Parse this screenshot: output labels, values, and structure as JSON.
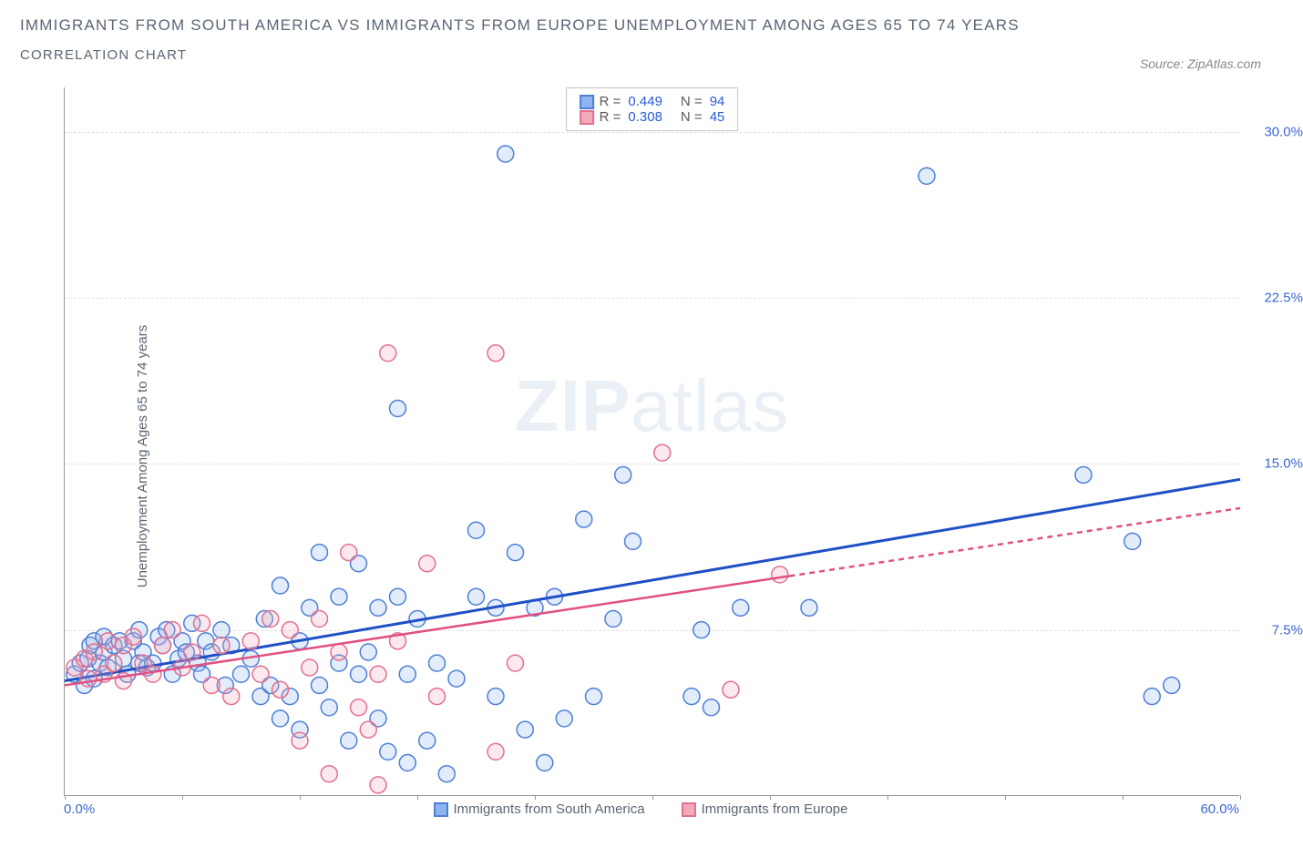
{
  "title_line1": "IMMIGRANTS FROM SOUTH AMERICA VS IMMIGRANTS FROM EUROPE UNEMPLOYMENT AMONG AGES 65 TO 74 YEARS",
  "title_line2": "CORRELATION CHART",
  "source_text": "Source: ZipAtlas.com",
  "y_axis_label": "Unemployment Among Ages 65 to 74 years",
  "watermark_bold": "ZIP",
  "watermark_rest": "atlas",
  "chart": {
    "type": "scatter",
    "background_color": "#ffffff",
    "grid_color": "#e0e0e0",
    "axis_color": "#999999",
    "text_color": "#5a6675",
    "tick_label_color": "#3a66d6",
    "marker_radius": 9,
    "marker_stroke_width": 1.5,
    "marker_fill_opacity": 0.25,
    "xlim": [
      0,
      60
    ],
    "ylim": [
      0,
      32
    ],
    "x_ticks": [
      0,
      6,
      12,
      18,
      24,
      30,
      36,
      42,
      48,
      54,
      60
    ],
    "x_tick_labels": {
      "0": "0.0%",
      "60": "60.0%"
    },
    "y_gridlines": [
      7.5,
      15.0,
      22.5,
      30.0
    ],
    "y_tick_labels": {
      "7.5": "7.5%",
      "15.0": "15.0%",
      "22.5": "22.5%",
      "30.0": "30.0%"
    }
  },
  "series": [
    {
      "id": "south_america",
      "label": "Immigrants from South America",
      "fill": "#8fb3ef",
      "stroke": "#4d7fd6",
      "trend_color": "#1e50c6",
      "trend_width": 3,
      "trend_dashed_tail": false,
      "R": "0.449",
      "N": "94",
      "trend": {
        "x1": 0,
        "y1": 5.2,
        "x2": 60,
        "y2": 14.3
      },
      "points": [
        [
          0.5,
          5.5
        ],
        [
          0.8,
          6.0
        ],
        [
          1.0,
          5.0
        ],
        [
          1.2,
          6.2
        ],
        [
          1.3,
          6.8
        ],
        [
          1.5,
          5.3
        ],
        [
          1.5,
          7.0
        ],
        [
          1.8,
          6.0
        ],
        [
          2.0,
          6.5
        ],
        [
          2.0,
          7.2
        ],
        [
          2.2,
          5.8
        ],
        [
          2.5,
          6.8
        ],
        [
          2.8,
          7.0
        ],
        [
          3.0,
          6.2
        ],
        [
          3.2,
          5.5
        ],
        [
          3.5,
          7.0
        ],
        [
          3.8,
          6.0
        ],
        [
          3.8,
          7.5
        ],
        [
          4.0,
          6.5
        ],
        [
          4.2,
          5.8
        ],
        [
          4.5,
          6.0
        ],
        [
          4.8,
          7.2
        ],
        [
          5.0,
          6.8
        ],
        [
          5.2,
          7.5
        ],
        [
          5.5,
          5.5
        ],
        [
          5.8,
          6.2
        ],
        [
          6.0,
          7.0
        ],
        [
          6.2,
          6.5
        ],
        [
          6.5,
          7.8
        ],
        [
          6.8,
          6.0
        ],
        [
          7.0,
          5.5
        ],
        [
          7.2,
          7.0
        ],
        [
          7.5,
          6.5
        ],
        [
          8.0,
          7.5
        ],
        [
          8.2,
          5.0
        ],
        [
          8.5,
          6.8
        ],
        [
          9.0,
          5.5
        ],
        [
          9.5,
          6.2
        ],
        [
          10.0,
          4.5
        ],
        [
          10.2,
          8.0
        ],
        [
          10.5,
          5.0
        ],
        [
          11.0,
          3.5
        ],
        [
          11.0,
          9.5
        ],
        [
          11.5,
          4.5
        ],
        [
          12.0,
          7.0
        ],
        [
          12.0,
          3.0
        ],
        [
          12.5,
          8.5
        ],
        [
          13.0,
          5.0
        ],
        [
          13.0,
          11.0
        ],
        [
          13.5,
          4.0
        ],
        [
          14.0,
          6.0
        ],
        [
          14.0,
          9.0
        ],
        [
          14.5,
          2.5
        ],
        [
          15.0,
          10.5
        ],
        [
          15.0,
          5.5
        ],
        [
          15.5,
          6.5
        ],
        [
          16.0,
          8.5
        ],
        [
          16.0,
          3.5
        ],
        [
          16.5,
          2.0
        ],
        [
          17.0,
          9.0
        ],
        [
          17.0,
          17.5
        ],
        [
          17.5,
          5.5
        ],
        [
          17.5,
          1.5
        ],
        [
          18.0,
          8.0
        ],
        [
          18.5,
          2.5
        ],
        [
          19.0,
          6.0
        ],
        [
          19.5,
          1.0
        ],
        [
          20.0,
          5.3
        ],
        [
          21.0,
          9.0
        ],
        [
          21.0,
          12.0
        ],
        [
          22.0,
          4.5
        ],
        [
          22.0,
          8.5
        ],
        [
          22.5,
          29.0
        ],
        [
          23.0,
          11.0
        ],
        [
          23.5,
          3.0
        ],
        [
          24.0,
          8.5
        ],
        [
          24.5,
          1.5
        ],
        [
          25.0,
          9.0
        ],
        [
          25.5,
          3.5
        ],
        [
          26.5,
          12.5
        ],
        [
          27.0,
          4.5
        ],
        [
          28.0,
          8.0
        ],
        [
          28.5,
          14.5
        ],
        [
          29.0,
          11.5
        ],
        [
          32.0,
          4.5
        ],
        [
          32.5,
          7.5
        ],
        [
          33.0,
          4.0
        ],
        [
          34.5,
          8.5
        ],
        [
          38.0,
          8.5
        ],
        [
          44.0,
          28.0
        ],
        [
          52.0,
          14.5
        ],
        [
          54.5,
          11.5
        ],
        [
          55.5,
          4.5
        ],
        [
          56.5,
          5.0
        ]
      ]
    },
    {
      "id": "europe",
      "label": "Immigrants from Europe",
      "fill": "#f2a9b8",
      "stroke": "#e37090",
      "trend_color": "#e05080",
      "trend_width": 2.5,
      "trend_dashed_tail": true,
      "R": "0.308",
      "N": "45",
      "trend": {
        "x1": 0,
        "y1": 5.0,
        "x2": 60,
        "y2": 13.0
      },
      "trend_dash_from_x": 37,
      "points": [
        [
          0.5,
          5.8
        ],
        [
          1.0,
          6.2
        ],
        [
          1.2,
          5.3
        ],
        [
          1.5,
          6.5
        ],
        [
          2.0,
          5.5
        ],
        [
          2.2,
          7.0
        ],
        [
          2.5,
          6.0
        ],
        [
          3.0,
          6.8
        ],
        [
          3.0,
          5.2
        ],
        [
          3.5,
          7.2
        ],
        [
          4.0,
          6.0
        ],
        [
          4.5,
          5.5
        ],
        [
          5.0,
          6.8
        ],
        [
          5.5,
          7.5
        ],
        [
          6.0,
          5.8
        ],
        [
          6.5,
          6.5
        ],
        [
          7.0,
          7.8
        ],
        [
          7.5,
          5.0
        ],
        [
          8.0,
          6.8
        ],
        [
          8.5,
          4.5
        ],
        [
          9.5,
          7.0
        ],
        [
          10.0,
          5.5
        ],
        [
          10.5,
          8.0
        ],
        [
          11.0,
          4.8
        ],
        [
          11.5,
          7.5
        ],
        [
          12.0,
          2.5
        ],
        [
          12.5,
          5.8
        ],
        [
          13.0,
          8.0
        ],
        [
          13.5,
          1.0
        ],
        [
          14.0,
          6.5
        ],
        [
          14.5,
          11.0
        ],
        [
          15.0,
          4.0
        ],
        [
          15.5,
          3.0
        ],
        [
          16.0,
          5.5
        ],
        [
          16.0,
          0.5
        ],
        [
          16.5,
          20.0
        ],
        [
          17.0,
          7.0
        ],
        [
          18.5,
          10.5
        ],
        [
          19.0,
          4.5
        ],
        [
          22.0,
          2.0
        ],
        [
          22.0,
          20.0
        ],
        [
          23.0,
          6.0
        ],
        [
          30.5,
          15.5
        ],
        [
          34.0,
          4.8
        ],
        [
          36.5,
          10.0
        ]
      ]
    }
  ],
  "bottom_legend": [
    {
      "label": "Immigrants from South America",
      "fill": "#8fb3ef",
      "stroke": "#4d7fd6"
    },
    {
      "label": "Immigrants from Europe",
      "fill": "#f2a9b8",
      "stroke": "#e37090"
    }
  ]
}
